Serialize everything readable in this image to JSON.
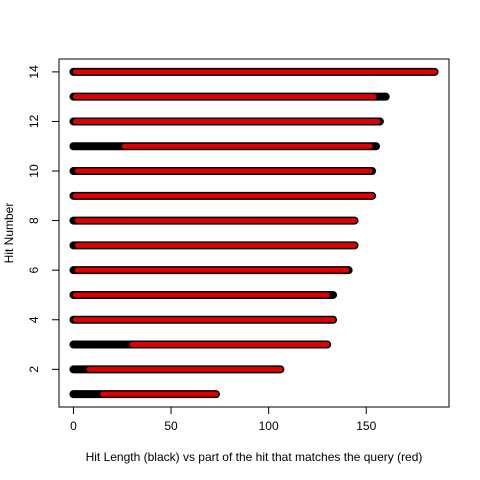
{
  "chart_data": {
    "type": "bar",
    "orientation": "horizontal",
    "xlabel": "Hit Length (black) vs part of the hit that matches the query (red)",
    "ylabel": "Hit Number",
    "xlim": [
      0,
      190
    ],
    "ylim": [
      1,
      14
    ],
    "x_ticks": [
      0,
      50,
      100,
      150
    ],
    "y_ticks": [
      2,
      4,
      6,
      8,
      10,
      12,
      14
    ],
    "grid": false,
    "colors": {
      "hit": "#000000",
      "match": "#dd0000"
    },
    "series": [
      {
        "name": "Hit Length",
        "color": "#000000"
      },
      {
        "name": "part of the hit that matches the query",
        "color": "#dd0000"
      }
    ],
    "hits": [
      {
        "hit": 1,
        "length_start": 0,
        "length_end": 73,
        "match_start": 15,
        "match_end": 73
      },
      {
        "hit": 2,
        "length_start": 0,
        "length_end": 106,
        "match_start": 8,
        "match_end": 106
      },
      {
        "hit": 3,
        "length_start": 0,
        "length_end": 130,
        "match_start": 30,
        "match_end": 130
      },
      {
        "hit": 4,
        "length_start": 0,
        "length_end": 133,
        "match_start": 1,
        "match_end": 133
      },
      {
        "hit": 5,
        "length_start": 0,
        "length_end": 133,
        "match_start": 1,
        "match_end": 130
      },
      {
        "hit": 6,
        "length_start": 0,
        "length_end": 141,
        "match_start": 2,
        "match_end": 140
      },
      {
        "hit": 7,
        "length_start": 0,
        "length_end": 144,
        "match_start": 2,
        "match_end": 144
      },
      {
        "hit": 8,
        "length_start": 0,
        "length_end": 144,
        "match_start": 2,
        "match_end": 144
      },
      {
        "hit": 9,
        "length_start": 0,
        "length_end": 153,
        "match_start": 1,
        "match_end": 153
      },
      {
        "hit": 10,
        "length_start": 0,
        "length_end": 153,
        "match_start": 2,
        "match_end": 152
      },
      {
        "hit": 11,
        "length_start": 0,
        "length_end": 155,
        "match_start": 26,
        "match_end": 152
      },
      {
        "hit": 12,
        "length_start": 0,
        "length_end": 157,
        "match_start": 1,
        "match_end": 156
      },
      {
        "hit": 13,
        "length_start": 0,
        "length_end": 160,
        "match_start": 1,
        "match_end": 154
      },
      {
        "hit": 14,
        "length_start": 0,
        "length_end": 185,
        "match_start": 1,
        "match_end": 185
      }
    ]
  }
}
